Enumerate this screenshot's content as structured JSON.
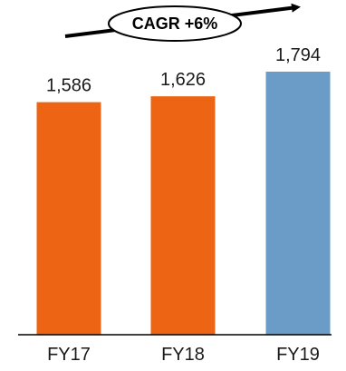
{
  "chart_data": {
    "type": "bar",
    "title": "",
    "xlabel": "",
    "ylabel": "",
    "categories": [
      "FY17",
      "FY18",
      "FY19"
    ],
    "values": [
      1586,
      1626,
      1794
    ],
    "value_labels": [
      "1,586",
      "1,626",
      "1,794"
    ],
    "ylim": [
      0,
      1794
    ],
    "grid": false,
    "bar_colors": [
      "#EC6414",
      "#EC6414",
      "#6A9CC7"
    ],
    "annotation": {
      "text": "CAGR +6%",
      "shape": "ellipse-on-arrow"
    }
  }
}
